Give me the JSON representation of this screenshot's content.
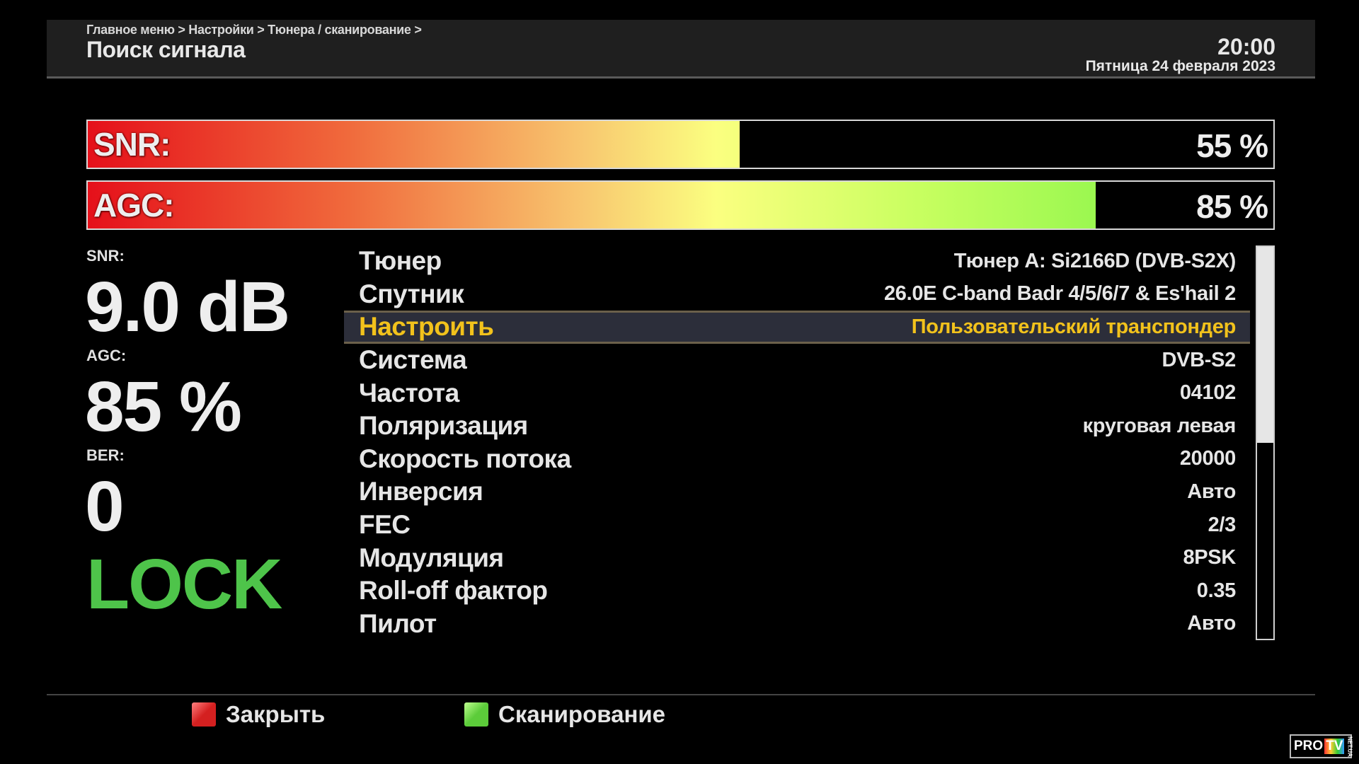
{
  "header": {
    "breadcrumb": "Главное меню > Настройки > Тюнера / сканирование >",
    "title": "Поиск сигнала",
    "time": "20:00",
    "date": "Пятница 24 февраля 2023"
  },
  "bars": [
    {
      "label": "SNR:",
      "percent": 55,
      "percent_text": "55 %"
    },
    {
      "label": "AGC:",
      "percent": 85,
      "percent_text": "85 %"
    }
  ],
  "stats": {
    "snr_label": "SNR:",
    "snr_value": "9.0 dB",
    "agc_label": "AGC:",
    "agc_value": "85 %",
    "ber_label": "BER:",
    "ber_value": "0",
    "lock": "LOCK"
  },
  "list": {
    "items": [
      {
        "label": "Тюнер",
        "value": "Тюнер A: Si2166D (DVB-S2X)"
      },
      {
        "label": "Спутник",
        "value": "26.0E C-band Badr 4/5/6/7 & Es'hail 2"
      },
      {
        "label": "Настроить",
        "value": "Пользовательский транспондер",
        "selected": true
      },
      {
        "label": "Система",
        "value": "DVB-S2"
      },
      {
        "label": "Частота",
        "value": "04102"
      },
      {
        "label": "Поляризация",
        "value": "круговая левая"
      },
      {
        "label": "Скорость потока",
        "value": "20000"
      },
      {
        "label": "Инверсия",
        "value": "Авто"
      },
      {
        "label": "FEC",
        "value": "2/3"
      },
      {
        "label": "Модуляция",
        "value": "8PSK"
      },
      {
        "label": "Roll-off фактор",
        "value": "0.35"
      },
      {
        "label": "Пилот",
        "value": "Авто"
      }
    ],
    "scroll_position": 0.5
  },
  "footer": {
    "close": "Закрыть",
    "scan": "Сканирование",
    "close_color": "#d42020",
    "scan_color": "#5ccc3a"
  },
  "logo": {
    "text": "PRO",
    "tv": "TV",
    "net": "NET.UA"
  },
  "colors": {
    "highlight": "#f2c21c",
    "lock": "#4ec44a"
  }
}
